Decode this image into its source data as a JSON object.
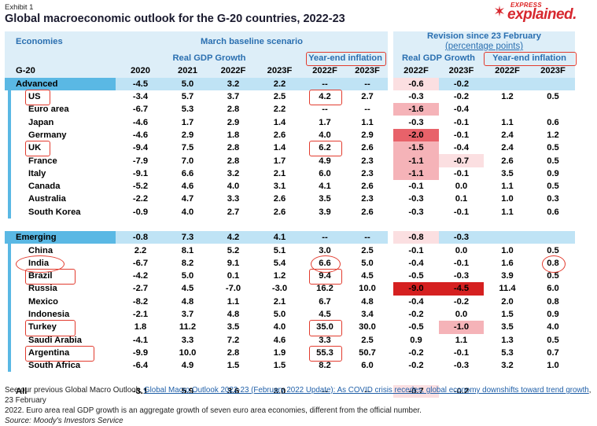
{
  "exhibit": "Exhibit 1",
  "title": "Global macroeconomic outlook for the G-20 countries, 2022-23",
  "logo": {
    "top": "EXPRESS",
    "main": "explained."
  },
  "headers": {
    "economies": "Economies",
    "baseline": "March baseline scenario",
    "revision": "Revision since 23 February",
    "revision_sub": "(percentage points)",
    "gdp": "Real GDP Growth",
    "inflation": "Year-end inflation",
    "group": "G-20",
    "years": [
      "2020",
      "2021",
      "2022F",
      "2023F",
      "2022F",
      "2023F",
      "2022F",
      "2023F",
      "2022F",
      "2023F"
    ]
  },
  "rows": [
    {
      "name": "Advanced",
      "type": "agg",
      "v": [
        "-4.5",
        "5.0",
        "3.2",
        "2.2",
        "--",
        "--",
        "-0.6",
        "-0.2",
        "",
        ""
      ]
    },
    {
      "name": "US",
      "v": [
        "-3.4",
        "5.7",
        "3.7",
        "2.5",
        "4.2",
        "2.7",
        "-0.3",
        "-0.2",
        "1.2",
        "0.5"
      ]
    },
    {
      "name": "Euro area",
      "v": [
        "-6.7",
        "5.3",
        "2.8",
        "2.2",
        "--",
        "--",
        "-1.6",
        "-0.4",
        "",
        ""
      ]
    },
    {
      "name": "Japan",
      "v": [
        "-4.6",
        "1.7",
        "2.9",
        "1.4",
        "1.7",
        "1.1",
        "-0.3",
        "-0.1",
        "1.1",
        "0.6"
      ]
    },
    {
      "name": "Germany",
      "v": [
        "-4.6",
        "2.9",
        "1.8",
        "2.6",
        "4.0",
        "2.9",
        "-2.0",
        "-0.1",
        "2.4",
        "1.2"
      ]
    },
    {
      "name": "UK",
      "v": [
        "-9.4",
        "7.5",
        "2.8",
        "1.4",
        "6.2",
        "2.6",
        "-1.5",
        "-0.4",
        "2.4",
        "0.5"
      ]
    },
    {
      "name": "France",
      "v": [
        "-7.9",
        "7.0",
        "2.8",
        "1.7",
        "4.9",
        "2.3",
        "-1.1",
        "-0.7",
        "2.6",
        "0.5"
      ]
    },
    {
      "name": "Italy",
      "v": [
        "-9.1",
        "6.6",
        "3.2",
        "2.1",
        "6.0",
        "2.3",
        "-1.1",
        "-0.1",
        "3.5",
        "0.9"
      ]
    },
    {
      "name": "Canada",
      "v": [
        "-5.2",
        "4.6",
        "4.0",
        "3.1",
        "4.1",
        "2.6",
        "-0.1",
        "0.0",
        "1.1",
        "0.5"
      ]
    },
    {
      "name": "Australia",
      "v": [
        "-2.2",
        "4.7",
        "3.3",
        "2.6",
        "3.5",
        "2.3",
        "-0.3",
        "0.1",
        "1.0",
        "0.3"
      ]
    },
    {
      "name": "South Korea",
      "v": [
        "-0.9",
        "4.0",
        "2.7",
        "2.6",
        "3.9",
        "2.6",
        "-0.3",
        "-0.1",
        "1.1",
        "0.6"
      ]
    },
    {
      "name": "Emerging",
      "type": "agg",
      "v": [
        "-0.8",
        "7.3",
        "4.2",
        "4.1",
        "--",
        "--",
        "-0.8",
        "-0.3",
        "",
        ""
      ]
    },
    {
      "name": "China",
      "v": [
        "2.2",
        "8.1",
        "5.2",
        "5.1",
        "3.0",
        "2.5",
        "-0.1",
        "0.0",
        "1.0",
        "0.5"
      ]
    },
    {
      "name": "India",
      "v": [
        "-6.7",
        "8.2",
        "9.1",
        "5.4",
        "6.6",
        "5.0",
        "-0.4",
        "-0.1",
        "1.6",
        "0.8"
      ]
    },
    {
      "name": "Brazil",
      "v": [
        "-4.2",
        "5.0",
        "0.1",
        "1.2",
        "9.4",
        "4.5",
        "-0.5",
        "-0.3",
        "3.9",
        "0.5"
      ]
    },
    {
      "name": "Russia",
      "v": [
        "-2.7",
        "4.5",
        "-7.0",
        "-3.0",
        "16.2",
        "10.0",
        "-9.0",
        "-4.5",
        "11.4",
        "6.0"
      ]
    },
    {
      "name": "Mexico",
      "v": [
        "-8.2",
        "4.8",
        "1.1",
        "2.1",
        "6.7",
        "4.8",
        "-0.4",
        "-0.2",
        "2.0",
        "0.8"
      ]
    },
    {
      "name": "Indonesia",
      "v": [
        "-2.1",
        "3.7",
        "4.8",
        "5.0",
        "4.5",
        "3.4",
        "-0.2",
        "0.0",
        "1.5",
        "0.9"
      ]
    },
    {
      "name": "Turkey",
      "v": [
        "1.8",
        "11.2",
        "3.5",
        "4.0",
        "35.0",
        "30.0",
        "-0.5",
        "-1.0",
        "3.5",
        "4.0"
      ]
    },
    {
      "name": "Saudi Arabia",
      "v": [
        "-4.1",
        "3.3",
        "7.2",
        "4.6",
        "3.3",
        "2.5",
        "0.9",
        "1.1",
        "1.3",
        "0.5"
      ]
    },
    {
      "name": "Argentina",
      "v": [
        "-9.9",
        "10.0",
        "2.8",
        "1.9",
        "55.3",
        "50.7",
        "-0.2",
        "-0.1",
        "5.3",
        "0.7"
      ]
    },
    {
      "name": "South Africa",
      "v": [
        "-6.4",
        "4.9",
        "1.5",
        "1.5",
        "8.2",
        "6.0",
        "-0.2",
        "-0.3",
        "3.2",
        "1.0"
      ]
    },
    {
      "name": "All",
      "type": "all",
      "v": [
        "-3.1",
        "5.9",
        "3.6",
        "3.0",
        "--",
        "--",
        "-0.7",
        "-0.2",
        "",
        ""
      ]
    }
  ],
  "colors": {
    "deep": "#d52020",
    "mid": "#e8626a",
    "light": "#f5b3b8",
    "pale": "#fbdfe1",
    "header_bg": "#ddeef8",
    "agg_bg": "#bfe3f5",
    "agg_accent": "#5ab8e4",
    "annot": "#e23b2e"
  },
  "footer": {
    "line1_pre": "See our previous Global Macro Outlook, ",
    "line1_link": "Global Macro Outlook 2022-23 (February 2022 Update): As COVID crisis recedes, global economy downshifts toward trend growth",
    "line1_post": ", 23 February",
    "line2": "2022. Euro area real GDP growth is an aggregate growth of seven euro area economies, different from the official number.",
    "source": "Source: Moody's Investors Service"
  }
}
